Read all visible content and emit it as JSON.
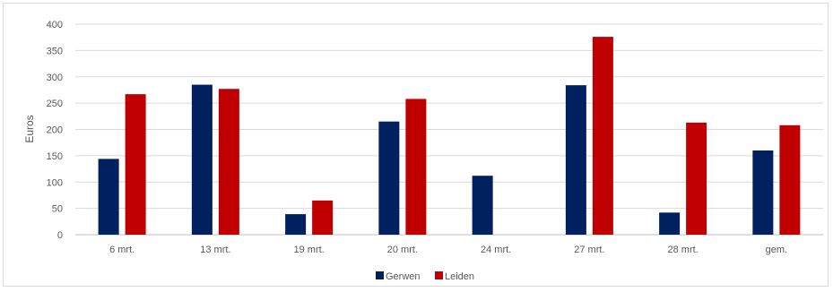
{
  "chart_data": {
    "type": "bar",
    "title": "",
    "xlabel": "",
    "ylabel": "Euros",
    "ylim": [
      0,
      400
    ],
    "yticks": [
      0,
      50,
      100,
      150,
      200,
      250,
      300,
      350,
      400
    ],
    "grid": true,
    "legend_position": "bottom",
    "categories": [
      "6 mrt.",
      "13 mrt.",
      "19 mrt.",
      "20 mrt.",
      "24 mrt.",
      "27 mrt.",
      "28 mrt.",
      "gem."
    ],
    "series": [
      {
        "name": "Gerwen",
        "color": "#002060",
        "values": [
          144,
          285,
          39,
          215,
          112,
          284,
          42,
          160
        ]
      },
      {
        "name": "Leiden",
        "color": "#C00000",
        "values": [
          267,
          277,
          65,
          258,
          null,
          376,
          213,
          208
        ]
      }
    ]
  }
}
